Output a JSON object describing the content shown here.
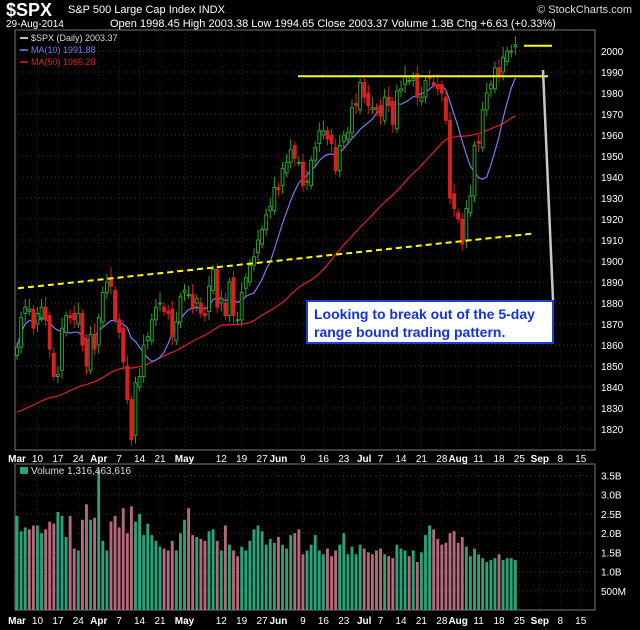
{
  "header": {
    "ticker": "$SPX",
    "name": "S&P 500 Large Cap Index INDX",
    "brand": "© StockCharts.com",
    "date": "29-Aug-2014",
    "ohlc": "Open 1998.45 High 2003.38 Low 1994.65 Close 2003.37 Volume 1.3B Chg +6.63 (+0.33%)"
  },
  "colors": {
    "up": "#2e9e2e",
    "down": "#d82020",
    "ma10": "#7c7cf0",
    "ma50": "#e02020",
    "resistance": "#ffff00",
    "volume_up": "#2aa37a",
    "volume_down": "#b56a7a"
  },
  "chart_data": {
    "type": "candlestick",
    "title": "$SPX S&P 500 Large Cap Index INDX",
    "price_legend": [
      {
        "name": "$SPX (Daily) 2003.37",
        "color": "#ffffff"
      },
      {
        "name": "MA(10) 1991.88",
        "color": "#7c7cf0"
      },
      {
        "name": "MA(50) 1966.28",
        "color": "#e02020"
      }
    ],
    "volume_legend": "Volume 1,316,463,616",
    "ylim": [
      1810,
      2010
    ],
    "y_ticks": [
      2000,
      1990,
      1980,
      1970,
      1960,
      1950,
      1940,
      1930,
      1920,
      1910,
      1900,
      1890,
      1880,
      1870,
      1860,
      1850,
      1840,
      1830,
      1820
    ],
    "volume_ylim": [
      0,
      3.8
    ],
    "volume_ticks": [
      "3.5B",
      "3.0B",
      "2.5B",
      "2.0B",
      "1.5B",
      "1.0B",
      "500M"
    ],
    "volume_tick_values": [
      3.5,
      3.0,
      2.5,
      2.0,
      1.5,
      1.0,
      0.5
    ],
    "x_labels": [
      "Mar",
      "10",
      "17",
      "24",
      "Apr",
      "7",
      "14",
      "21",
      "May",
      "12",
      "19",
      "27",
      "Jun",
      "9",
      "16",
      "23",
      "Jul",
      "7",
      "14",
      "21",
      "28",
      "Aug",
      "11",
      "18",
      "25",
      "Sep",
      "8",
      "15"
    ],
    "x_label_idx": [
      0,
      5,
      10,
      15,
      20,
      25,
      30,
      35,
      41,
      50,
      55,
      60,
      64,
      70,
      75,
      80,
      85,
      89,
      94,
      99,
      104,
      108,
      113,
      118,
      123,
      128,
      133,
      138
    ],
    "bold_labels": [
      "Mar",
      "Apr",
      "May",
      "Jun",
      "Jul",
      "Aug",
      "Sep"
    ],
    "close": [
      1859,
      1873,
      1878,
      1877,
      1868,
      1875,
      1878,
      1872,
      1858,
      1845,
      1846,
      1868,
      1874,
      1873,
      1872,
      1875,
      1860,
      1850,
      1865,
      1858,
      1873,
      1885,
      1890,
      1888,
      1872,
      1866,
      1852,
      1834,
      1815,
      1842,
      1845,
      1860,
      1864,
      1872,
      1878,
      1880,
      1876,
      1875,
      1864,
      1871,
      1883,
      1886,
      1884,
      1878,
      1882,
      1875,
      1874,
      1888,
      1896,
      1878,
      1882,
      1874,
      1890,
      1874,
      1872,
      1885,
      1892,
      1898,
      1902,
      1910,
      1915,
      1922,
      1926,
      1935,
      1934,
      1944,
      1947,
      1953,
      1949,
      1947,
      1936,
      1938,
      1948,
      1954,
      1962,
      1962,
      1958,
      1956,
      1943,
      1955,
      1960,
      1961,
      1973,
      1974,
      1985,
      1978,
      1974,
      1973,
      1972,
      1969,
      1978,
      1974,
      1965,
      1981,
      1982,
      1988,
      1986,
      1987,
      1978,
      1978,
      1986,
      1987,
      1984,
      1982,
      1980,
      1967,
      1930,
      1925,
      1920,
      1908,
      1925,
      1931,
      1955,
      1956,
      1972,
      1980,
      1984,
      1992,
      1988,
      1997,
      2000,
      2000,
      2003
    ],
    "ma10_end": 1991.88,
    "ma50_end": 1966.28,
    "volume": [
      2.45,
      2.05,
      2.15,
      2.1,
      2.2,
      2.2,
      2.0,
      2.1,
      2.3,
      2.25,
      2.55,
      2.45,
      1.9,
      2.45,
      1.6,
      1.55,
      2.35,
      2.75,
      2.35,
      2.4,
      3.65,
      1.8,
      1.55,
      2.3,
      2.45,
      2.15,
      2.65,
      2.0,
      2.7,
      2.3,
      2.5,
      1.95,
      2.25,
      1.95,
      1.8,
      1.65,
      1.6,
      1.55,
      1.8,
      1.55,
      2.0,
      2.35,
      2.65,
      1.95,
      1.9,
      1.85,
      1.8,
      2.05,
      2.1,
      1.8,
      1.55,
      2.2,
      1.7,
      1.55,
      1.4,
      1.65,
      1.55,
      1.8,
      2.1,
      2.2,
      2.05,
      1.7,
      1.85,
      1.75,
      1.9,
      1.7,
      1.6,
      1.95,
      2.0,
      2.1,
      1.45,
      1.55,
      1.7,
      1.95,
      1.55,
      1.45,
      1.6,
      1.4,
      1.55,
      1.7,
      2.0,
      1.45,
      1.65,
      1.45,
      1.7,
      1.6,
      1.5,
      1.45,
      1.55,
      1.6,
      1.45,
      1.4,
      1.35,
      1.7,
      1.6,
      1.55,
      1.4,
      1.55,
      1.25,
      1.5,
      1.95,
      2.2,
      2.1,
      1.85,
      1.7,
      1.75,
      2.0,
      2.05,
      1.75,
      1.9,
      1.65,
      1.4,
      1.6,
      1.45,
      1.35,
      1.25,
      1.3,
      1.35,
      1.45,
      1.3,
      1.35,
      1.35,
      1.3
    ],
    "annotation": "Looking to break out of the 5-day range bound trading pattern."
  }
}
